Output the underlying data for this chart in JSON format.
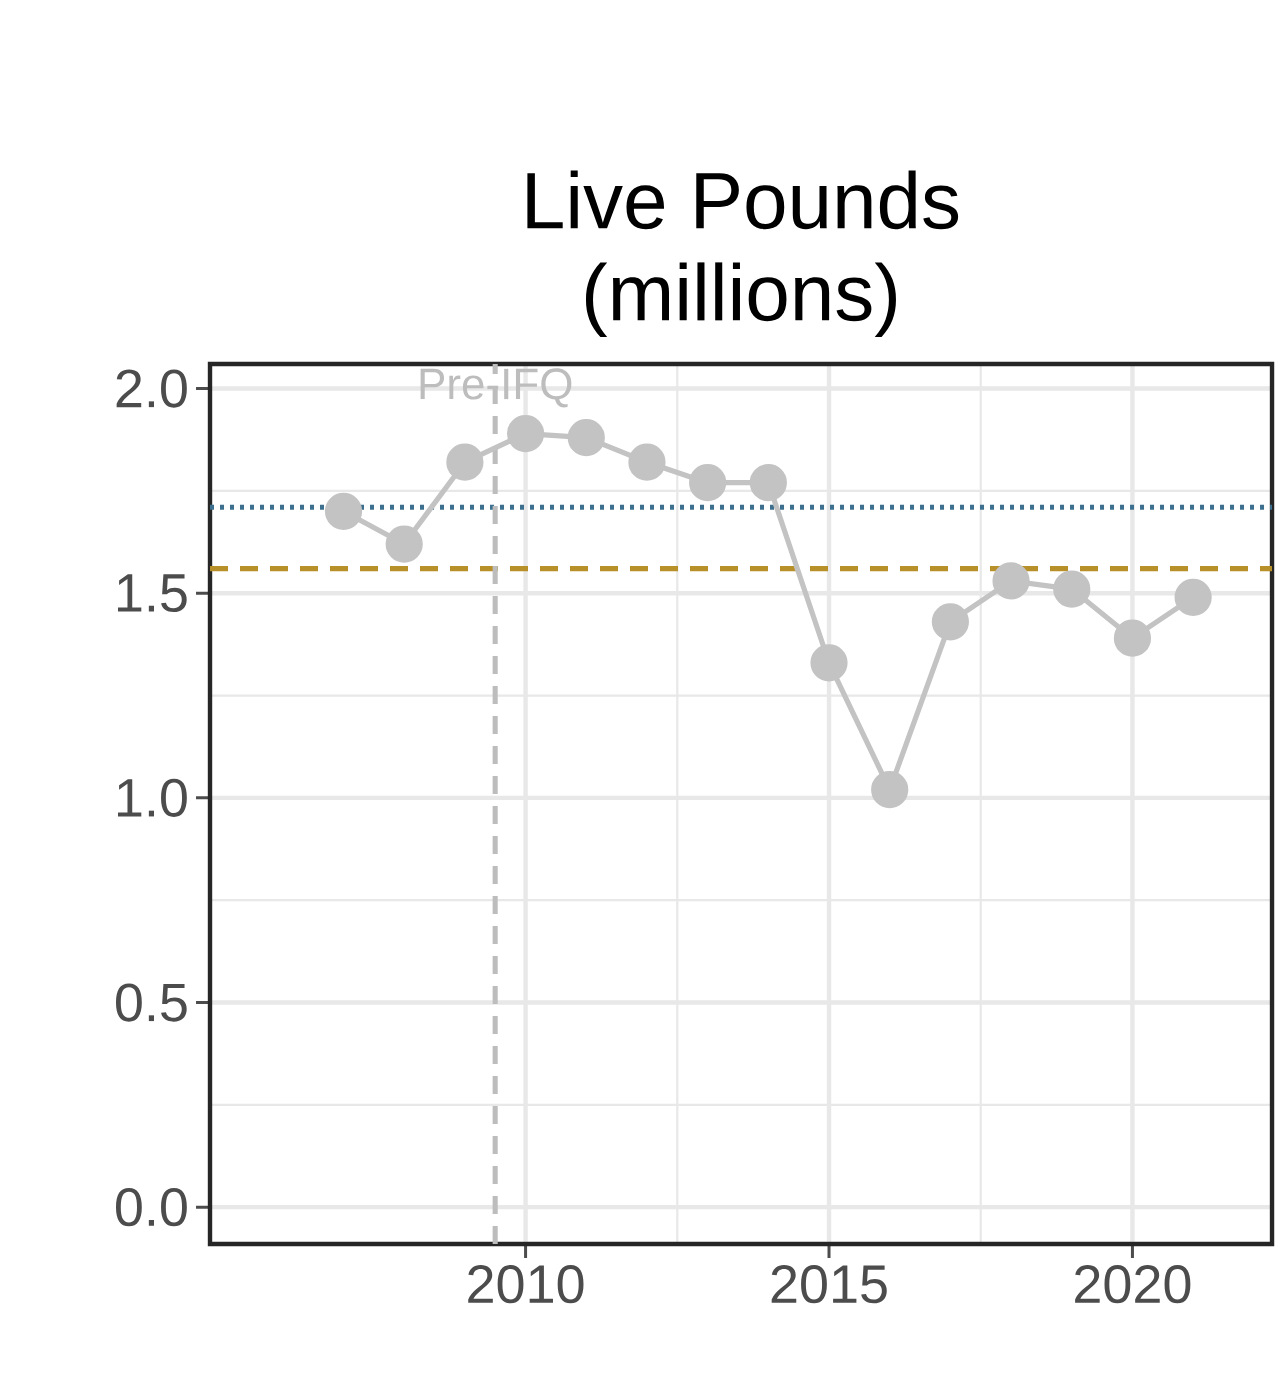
{
  "chart_data": {
    "type": "line",
    "title": "Live Pounds\n(millions)",
    "x": [
      2007,
      2008,
      2009,
      2010,
      2011,
      2012,
      2013,
      2014,
      2015,
      2016,
      2017,
      2018,
      2019,
      2020,
      2021
    ],
    "series": [
      {
        "color": "#c3c3c3",
        "values": [
          1.7,
          1.62,
          1.82,
          1.89,
          1.88,
          1.82,
          1.77,
          1.77,
          1.33,
          1.02,
          1.43,
          1.53,
          1.51,
          1.39,
          1.49
        ]
      }
    ],
    "marker": "circle",
    "grid": true,
    "xlim": [
      2004.8,
      2022.3
    ],
    "ylim": [
      -0.09,
      2.06
    ],
    "xticks": [
      2010,
      2015,
      2020
    ],
    "yticks": [
      {
        "value": 0,
        "label": "0.0"
      },
      {
        "value": 0.5,
        "label": "0.5"
      },
      {
        "value": 1,
        "label": "1.0"
      },
      {
        "value": 1.5,
        "label": "1.5"
      },
      {
        "value": 2,
        "label": "2.0"
      }
    ],
    "ref_lines": [
      {
        "axis": "y",
        "value": 1.71,
        "color": "#3d6f8e",
        "line_style": "dotted"
      },
      {
        "axis": "y",
        "value": 1.56,
        "color": "#b8902a",
        "line_style": "dashed"
      },
      {
        "axis": "x",
        "value": 2009.5,
        "label": "Pre-IFQ",
        "color": "#bdbdbd",
        "line_style": "dashed"
      }
    ]
  }
}
